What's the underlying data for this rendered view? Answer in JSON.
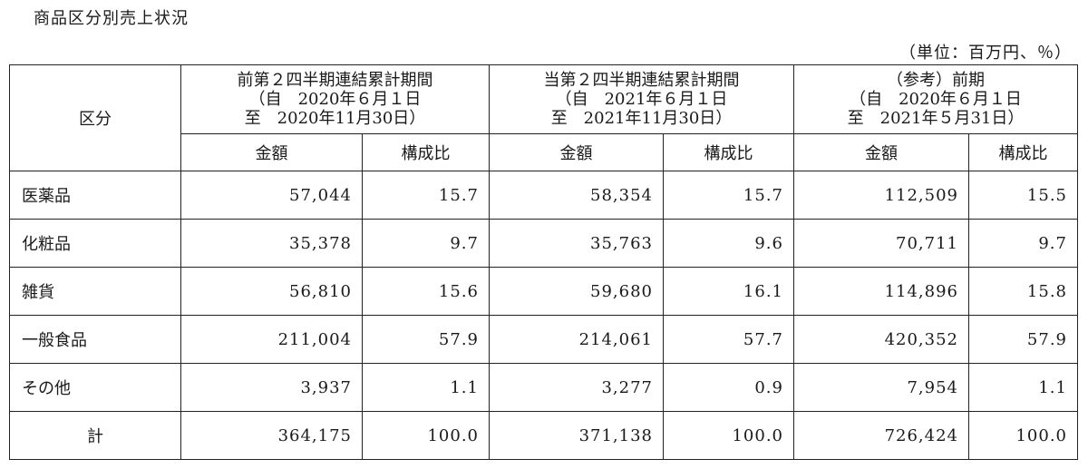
{
  "title": "商品区分別売上状況",
  "unit_note": "（単位：百万円、％）",
  "table": {
    "kubun_header": "区分",
    "periods": [
      {
        "line1": "前第２四半期連結累計期間",
        "line2": "（自　2020年６月１日",
        "line3": "至　2020年11月30日）"
      },
      {
        "line1": "当第２四半期連結累計期間",
        "line2": "（自　2021年６月１日",
        "line3": "至　2021年11月30日）"
      },
      {
        "line1": "（参考）前期",
        "line2": "（自　2020年６月１日",
        "line3": "至　2021年５月31日）"
      }
    ],
    "amount_label": "金額",
    "ratio_label": "構成比",
    "rows": [
      {
        "category": "医薬品",
        "values": [
          "57,044",
          "15.7",
          "58,354",
          "15.7",
          "112,509",
          "15.5"
        ]
      },
      {
        "category": "化粧品",
        "values": [
          "35,378",
          "9.7",
          "35,763",
          "9.6",
          "70,711",
          "9.7"
        ]
      },
      {
        "category": "雑貨",
        "values": [
          "56,810",
          "15.6",
          "59,680",
          "16.1",
          "114,896",
          "15.8"
        ]
      },
      {
        "category": "一般食品",
        "values": [
          "211,004",
          "57.9",
          "214,061",
          "57.7",
          "420,352",
          "57.9"
        ]
      },
      {
        "category": "その他",
        "values": [
          "3,937",
          "1.1",
          "3,277",
          "0.9",
          "7,954",
          "1.1"
        ]
      },
      {
        "category": "計",
        "values": [
          "364,175",
          "100.0",
          "371,138",
          "100.0",
          "726,424",
          "100.0"
        ]
      }
    ]
  }
}
